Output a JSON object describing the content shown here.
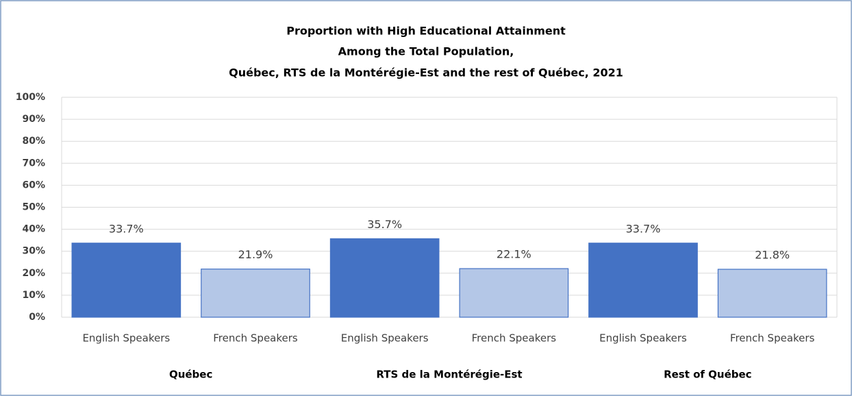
{
  "chart_data": {
    "type": "bar",
    "title": [
      "Proportion with High Educational  Attainment",
      "Among the Total Population,",
      "Québec, RTS de la Montérégie-Est and the rest of Québec, 2021"
    ],
    "categories": [
      "English Speakers",
      "French Speakers",
      "English Speakers",
      "French Speakers",
      "English Speakers",
      "French Speakers"
    ],
    "groups": [
      "Québec",
      "RTS de la Montérégie-Est",
      "Rest of Québec"
    ],
    "values": [
      33.7,
      21.9,
      35.7,
      22.1,
      33.7,
      21.8
    ],
    "value_labels": [
      "33.7%",
      "21.9%",
      "35.7%",
      "22.1%",
      "33.7%",
      "21.8%"
    ],
    "colors": [
      "#4472c4",
      "#b4c7e7",
      "#4472c4",
      "#b4c7e7",
      "#4472c4",
      "#b4c7e7"
    ],
    "ylim": [
      0,
      100
    ],
    "yticks": [
      {
        "value": 0,
        "label": "0%"
      },
      {
        "value": 10,
        "label": "10%"
      },
      {
        "value": 20,
        "label": "20%"
      },
      {
        "value": 30,
        "label": "30%"
      },
      {
        "value": 40,
        "label": "40%"
      },
      {
        "value": 50,
        "label": "50%"
      },
      {
        "value": 60,
        "label": "60%"
      },
      {
        "value": 70,
        "label": "70%"
      },
      {
        "value": 80,
        "label": "80%"
      },
      {
        "value": 90,
        "label": "90%"
      },
      {
        "value": 100,
        "label": "100%"
      }
    ],
    "grid": true
  }
}
